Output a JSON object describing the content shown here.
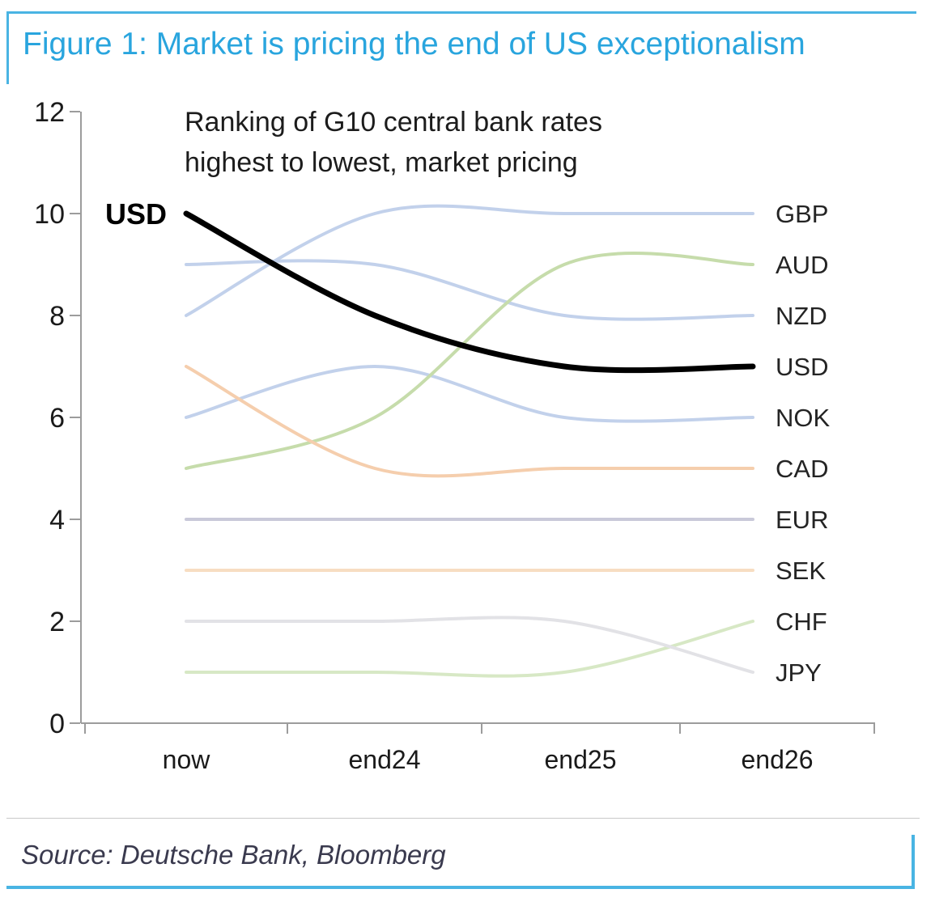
{
  "figure": {
    "title": "Figure 1: Market is pricing the end of US exceptionalism",
    "title_color": "#29a5de",
    "accent_color": "#49b4e3",
    "source": "Source: Deutsche Bank, Bloomberg"
  },
  "chart_data": {
    "type": "line",
    "subtype": "bump-ranking",
    "annotation": [
      "Ranking of G10 central bank rates",
      "highest to lowest, market pricing"
    ],
    "x_categories": [
      "now",
      "end24",
      "end25",
      "end26"
    ],
    "y_ticks": [
      0,
      2,
      4,
      6,
      8,
      10,
      12
    ],
    "ylim": [
      0,
      12
    ],
    "grid": false,
    "legend_position": "right-of-line-ends",
    "axis_color": "#9c9c9c",
    "tick_label_color": "#1a1a1a",
    "end_label_color": "#242424",
    "start_label": "USD",
    "series": [
      {
        "name": "GBP",
        "values": [
          8,
          10,
          10,
          10
        ],
        "color": "#c2d1eb",
        "width": 4
      },
      {
        "name": "NZD",
        "values": [
          9,
          9,
          8,
          8
        ],
        "color": "#c2d1eb",
        "width": 4
      },
      {
        "name": "NOK",
        "values": [
          6,
          7,
          6,
          6
        ],
        "color": "#c2d1eb",
        "width": 4
      },
      {
        "name": "AUD",
        "values": [
          5,
          6,
          9,
          9
        ],
        "color": "#c6dcab",
        "width": 4
      },
      {
        "name": "CAD",
        "values": [
          7,
          5,
          5,
          5
        ],
        "color": "#f5cead",
        "width": 4
      },
      {
        "name": "EUR",
        "values": [
          4,
          4,
          4,
          4
        ],
        "color": "#c9c9d9",
        "width": 4
      },
      {
        "name": "SEK",
        "values": [
          3,
          3,
          3,
          3
        ],
        "color": "#f7ddc2",
        "width": 4
      },
      {
        "name": "CHF",
        "values": [
          1,
          1,
          1,
          2
        ],
        "color": "#d7e8c5",
        "width": 4
      },
      {
        "name": "JPY",
        "values": [
          2,
          2,
          2,
          1
        ],
        "color": "#e2e2e6",
        "width": 4
      },
      {
        "name": "USD",
        "values": [
          10,
          8,
          7,
          7
        ],
        "color": "#000000",
        "width": 7,
        "emphasis": true
      }
    ]
  }
}
